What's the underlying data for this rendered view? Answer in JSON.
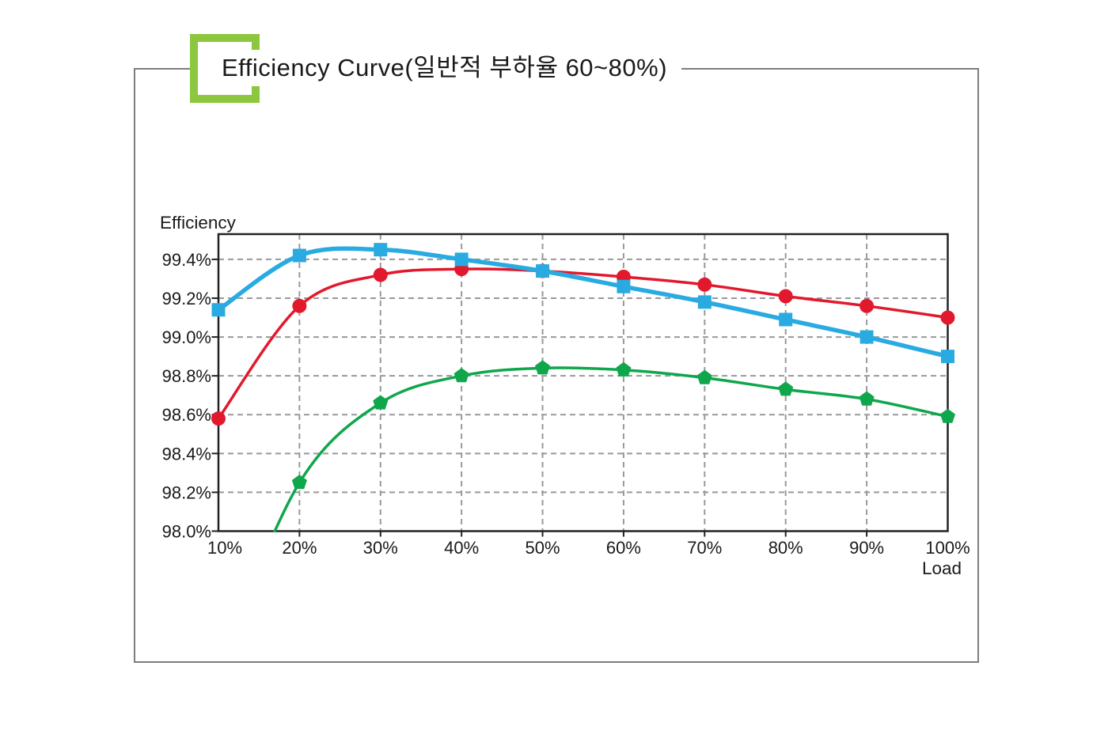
{
  "page": {
    "background_color": "#ffffff",
    "outer_border_color": "#7d7d7d"
  },
  "header": {
    "title": "Efficiency Curve(일반적 부하율 60~80%)",
    "bracket_color": "#8DC63F"
  },
  "chart_data": {
    "type": "line",
    "title": "Efficiency Curve(일반적 부하율 60~80%)",
    "xlabel": "Load",
    "ylabel": "Efficiency",
    "x_categories": [
      "10%",
      "20%",
      "30%",
      "40%",
      "50%",
      "60%",
      "70%",
      "80%",
      "90%",
      "100%"
    ],
    "y_tick_labels": [
      "98.0%",
      "98.2%",
      "98.4%",
      "98.6%",
      "98.8%",
      "99.0%",
      "99.2%",
      "99.4%"
    ],
    "y_tick_values": [
      98.0,
      98.2,
      98.4,
      98.6,
      98.8,
      99.0,
      99.2,
      99.4
    ],
    "ylim": [
      98.0,
      99.53
    ],
    "grid": true,
    "grid_style": "dashed",
    "legend": "none",
    "series": [
      {
        "name": "series-1",
        "marker": "square",
        "color": "#29ABE2",
        "values": [
          99.14,
          99.42,
          99.45,
          99.4,
          99.34,
          99.26,
          99.18,
          99.09,
          99.0,
          98.9
        ]
      },
      {
        "name": "series-2",
        "marker": "circle",
        "color": "#E2192C",
        "values": [
          98.58,
          99.16,
          99.32,
          99.35,
          99.34,
          99.31,
          99.27,
          99.21,
          99.16,
          99.1
        ]
      },
      {
        "name": "series-3",
        "marker": "pentagon",
        "color": "#0FA64C",
        "values": [
          null,
          98.25,
          98.66,
          98.8,
          98.84,
          98.83,
          98.79,
          98.73,
          98.68,
          98.59
        ],
        "note": "curve enters from below the 98.0% axis between 10% and 20% load"
      }
    ]
  }
}
